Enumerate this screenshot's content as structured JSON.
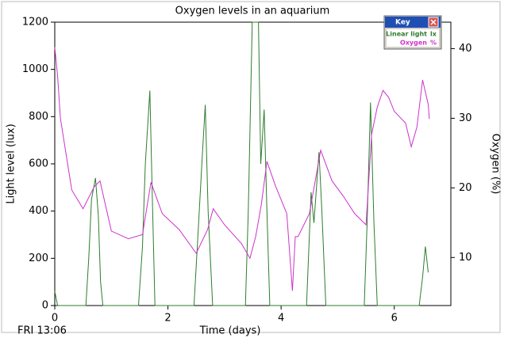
{
  "chart_data": {
    "type": "line",
    "title": "Oxygen levels in an aquarium",
    "x_label": "Time (days)",
    "y_label": "Light level (lux)",
    "y2_label": "Oxygen (%)",
    "timestamp": "FRI 13:06",
    "legend_title": "Key",
    "xlim": [
      0,
      7
    ],
    "xticks": [
      0,
      2,
      4,
      6
    ],
    "ylim": [
      0,
      1200
    ],
    "yticks": [
      0,
      200,
      400,
      600,
      800,
      1000,
      1200
    ],
    "y2lim": [
      3.1,
      43.8
    ],
    "y2ticks": [
      10,
      20,
      30,
      40
    ],
    "series": [
      {
        "name": "Linear light",
        "unit": "lx",
        "color": "#2e7d2e",
        "x": [
          0,
          0.05,
          0.55,
          0.6,
          0.65,
          0.72,
          0.77,
          0.81,
          0.85,
          1.48,
          1.55,
          1.6,
          1.68,
          1.72,
          1.77,
          2.46,
          2.52,
          2.6,
          2.66,
          2.71,
          2.79,
          3.37,
          3.42,
          3.49,
          3.6,
          3.64,
          3.7,
          3.75,
          3.8,
          4.45,
          4.5,
          4.53,
          4.58,
          4.67,
          4.72,
          4.79,
          5.47,
          5.52,
          5.58,
          5.64,
          5.7,
          6.44,
          6.5,
          6.55,
          6.6
        ],
        "values": [
          60,
          0,
          0,
          200,
          450,
          540,
          380,
          100,
          0,
          0,
          250,
          600,
          910,
          500,
          0,
          0,
          250,
          600,
          850,
          400,
          0,
          0,
          400,
          1200,
          1200,
          600,
          830,
          400,
          0,
          0,
          300,
          480,
          350,
          650,
          400,
          0,
          0,
          350,
          860,
          350,
          0,
          0,
          120,
          250,
          140
        ]
      },
      {
        "name": "Oxygen",
        "unit": "%",
        "color": "#cc33cc",
        "axis": "y2",
        "x": [
          0,
          0.05,
          0.1,
          0.3,
          0.5,
          0.7,
          0.8,
          1.0,
          1.3,
          1.55,
          1.7,
          1.9,
          2.2,
          2.5,
          2.7,
          2.8,
          3.0,
          3.3,
          3.45,
          3.55,
          3.65,
          3.75,
          3.9,
          4.1,
          4.2,
          4.25,
          4.3,
          4.5,
          4.7,
          4.9,
          5.1,
          5.3,
          5.5,
          5.6,
          5.7,
          5.8,
          5.9,
          6.0,
          6.2,
          6.3,
          6.4,
          6.5,
          6.6,
          6.62
        ],
        "values": [
          40.2,
          36,
          30,
          19.7,
          17,
          20.2,
          21,
          13.8,
          12.7,
          13.3,
          20.8,
          16.3,
          14,
          10.6,
          14,
          17,
          14.7,
          12,
          9.9,
          13,
          17.6,
          23.8,
          20.3,
          16.3,
          5.2,
          13,
          13,
          16.3,
          25.4,
          21,
          18.8,
          16.3,
          14.7,
          27.7,
          31.6,
          34,
          33,
          31,
          29.3,
          25.9,
          28.7,
          35.5,
          32,
          29.9
        ]
      }
    ]
  }
}
